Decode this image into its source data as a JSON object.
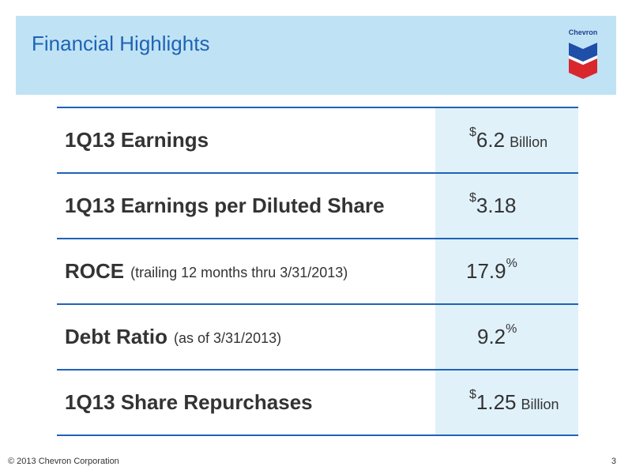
{
  "header": {
    "title": "Financial Highlights",
    "logo_text": "Chevron"
  },
  "rows": [
    {
      "label": "1Q13 Earnings",
      "sub": "",
      "value_prefix": "$",
      "value": "6.2",
      "value_suffix": "",
      "unit": "Billion"
    },
    {
      "label": "1Q13 Earnings per Diluted Share",
      "sub": "",
      "value_prefix": "$",
      "value": "3.18",
      "value_suffix": "",
      "unit": ""
    },
    {
      "label": "ROCE",
      "sub": "(trailing 12 months thru 3/31/2013)",
      "value_prefix": "",
      "value": "17.9",
      "value_suffix": "%",
      "unit": ""
    },
    {
      "label": "Debt Ratio",
      "sub": "(as of 3/31/2013)",
      "value_prefix": "",
      "value": "9.2",
      "value_suffix": "%",
      "unit": ""
    },
    {
      "label": "1Q13 Share Repurchases",
      "sub": "",
      "value_prefix": "$",
      "value": "1.25",
      "value_suffix": "",
      "unit": "Billion"
    }
  ],
  "footer": {
    "copyright": "© 2013 Chevron Corporation",
    "page_number": "3"
  },
  "colors": {
    "header_bg": "#bfe3f5",
    "title": "#1f63b5",
    "rule": "#1f63b5",
    "value_bg": "#e0f1fa"
  }
}
